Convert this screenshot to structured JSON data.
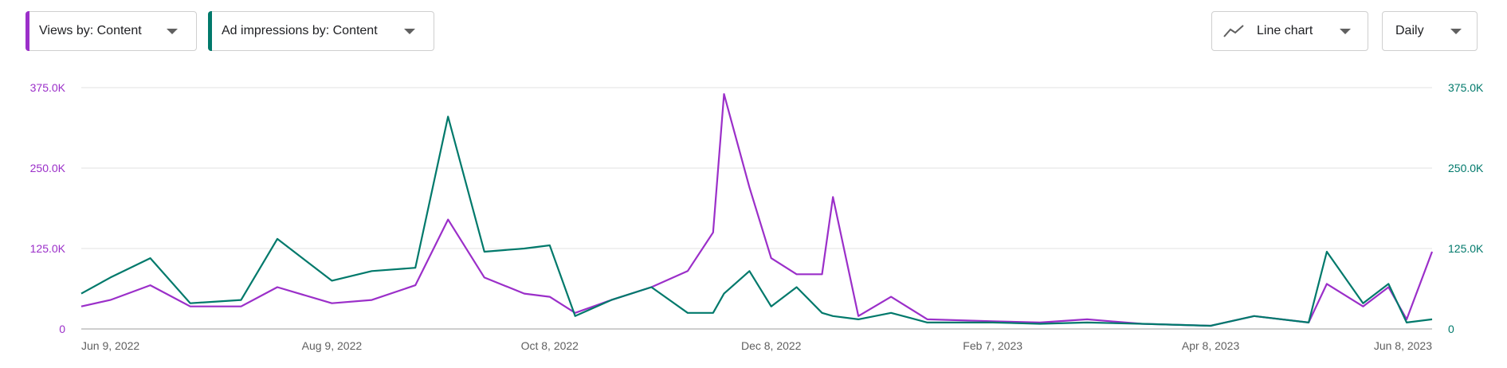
{
  "controls": {
    "views_dropdown": "Views by: Content",
    "ads_dropdown": "Ad impressions by: Content",
    "chart_type_dropdown": "Line chart",
    "interval_dropdown": "Daily",
    "icons": [
      "chevron-down-icon",
      "line-chart-icon"
    ]
  },
  "colors": {
    "views": "#9b2fc9",
    "ad_impressions": "#00796b",
    "grid": "#e0e0e0",
    "axis": "#9e9e9e"
  },
  "chart_data": {
    "type": "line",
    "x": [
      "2022-06-01",
      "2022-06-09",
      "2022-06-20",
      "2022-07-01",
      "2022-07-15",
      "2022-07-25",
      "2022-08-09",
      "2022-08-20",
      "2022-09-01",
      "2022-09-10",
      "2022-09-20",
      "2022-10-01",
      "2022-10-08",
      "2022-10-15",
      "2022-10-25",
      "2022-11-05",
      "2022-11-15",
      "2022-11-22",
      "2022-11-25",
      "2022-12-02",
      "2022-12-08",
      "2022-12-15",
      "2022-12-22",
      "2022-12-25",
      "2023-01-01",
      "2023-01-10",
      "2023-01-20",
      "2023-02-07",
      "2023-02-20",
      "2023-03-05",
      "2023-03-20",
      "2023-04-08",
      "2023-04-20",
      "2023-05-05",
      "2023-05-10",
      "2023-05-20",
      "2023-05-27",
      "2023-06-01",
      "2023-06-08"
    ],
    "series": [
      {
        "name": "Views",
        "color": "#9b2fc9",
        "axis": "left",
        "values": [
          35,
          45,
          68,
          35,
          35,
          65,
          40,
          45,
          68,
          170,
          80,
          55,
          50,
          25,
          45,
          65,
          90,
          150,
          365,
          220,
          110,
          85,
          85,
          205,
          20,
          50,
          15,
          12,
          10,
          15,
          8,
          5,
          20,
          10,
          70,
          35,
          65,
          15,
          120
        ]
      },
      {
        "name": "Ad impressions",
        "color": "#00796b",
        "axis": "right",
        "values": [
          55,
          80,
          110,
          40,
          45,
          140,
          75,
          90,
          95,
          330,
          120,
          125,
          130,
          20,
          45,
          65,
          25,
          25,
          55,
          90,
          35,
          65,
          25,
          20,
          15,
          25,
          10,
          10,
          8,
          10,
          8,
          5,
          20,
          10,
          120,
          40,
          70,
          10,
          15
        ]
      }
    ],
    "x_ticks": [
      "Jun 9, 2022",
      "Aug 9, 2022",
      "Oct 8, 2022",
      "Dec 8, 2022",
      "Feb 7, 2023",
      "Apr 8, 2023",
      "Jun 8, 2023"
    ],
    "y_left_ticks": [
      "0",
      "125.0K",
      "250.0K",
      "375.0K"
    ],
    "y_right_ticks": [
      "0",
      "125.0K",
      "250.0K",
      "375.0K"
    ],
    "ylim": [
      0,
      375
    ],
    "xlim": [
      "2022-06-01",
      "2023-06-08"
    ],
    "grid": true
  }
}
